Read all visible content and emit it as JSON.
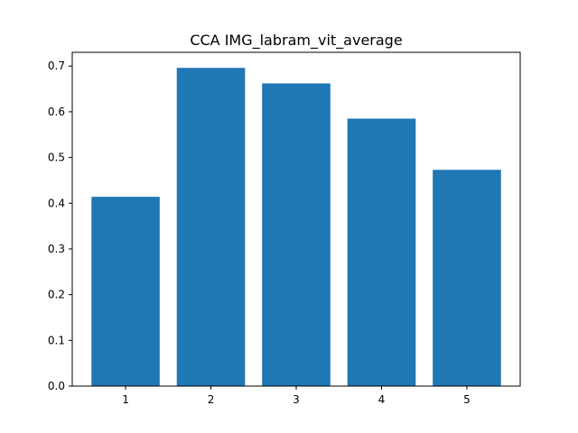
{
  "chart_data": {
    "type": "bar",
    "title": "CCA IMG_labram_vit_average",
    "xlabel": "",
    "ylabel": "",
    "categories": [
      "1",
      "2",
      "3",
      "4",
      "5"
    ],
    "values": [
      0.414,
      0.696,
      0.662,
      0.585,
      0.473
    ],
    "ylim": [
      0,
      0.73
    ],
    "yticks": [
      "0.0",
      "0.1",
      "0.2",
      "0.3",
      "0.4",
      "0.5",
      "0.6",
      "0.7"
    ],
    "grid": false,
    "bar_color": "#1f77b4"
  }
}
